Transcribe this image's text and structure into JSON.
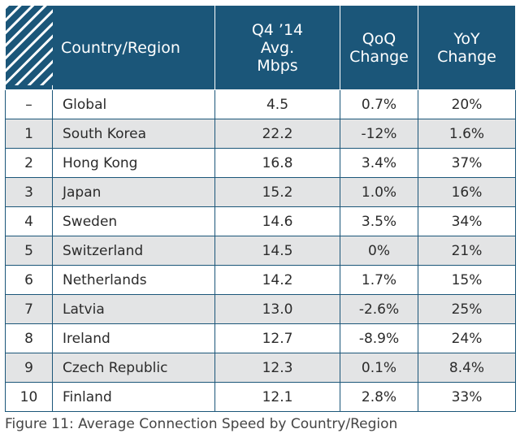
{
  "colors": {
    "header_bg": "#1b5679",
    "shaded_row_bg": "#e3e4e5",
    "border": "#1b5679"
  },
  "chart_data": {
    "type": "table",
    "columns": [
      "",
      "Country/Region",
      "Q4 ’14 Avg. Mbps",
      "QoQ Change",
      "YoY Change"
    ],
    "header_lines": {
      "country": "Country/Region",
      "speed": [
        "Q4 ’14",
        "Avg.",
        "Mbps"
      ],
      "qoq": [
        "QoQ",
        "Change"
      ],
      "yoy": [
        "YoY",
        "Change"
      ]
    },
    "rows": [
      {
        "rank": "–",
        "country": "Global",
        "speed": "4.5",
        "qoq": "0.7%",
        "yoy": "20%"
      },
      {
        "rank": "1",
        "country": "South Korea",
        "speed": "22.2",
        "qoq": "-12%",
        "yoy": "1.6%"
      },
      {
        "rank": "2",
        "country": "Hong Kong",
        "speed": "16.8",
        "qoq": "3.4%",
        "yoy": "37%"
      },
      {
        "rank": "3",
        "country": "Japan",
        "speed": "15.2",
        "qoq": "1.0%",
        "yoy": "16%"
      },
      {
        "rank": "4",
        "country": "Sweden",
        "speed": "14.6",
        "qoq": "3.5%",
        "yoy": "34%"
      },
      {
        "rank": "5",
        "country": "Switzerland",
        "speed": "14.5",
        "qoq": "0%",
        "yoy": "21%"
      },
      {
        "rank": "6",
        "country": "Netherlands",
        "speed": "14.2",
        "qoq": "1.7%",
        "yoy": "15%"
      },
      {
        "rank": "7",
        "country": "Latvia",
        "speed": "13.0",
        "qoq": "-2.6%",
        "yoy": "25%"
      },
      {
        "rank": "8",
        "country": "Ireland",
        "speed": "12.7",
        "qoq": "-8.9%",
        "yoy": "24%"
      },
      {
        "rank": "9",
        "country": "Czech Republic",
        "speed": "12.3",
        "qoq": "0.1%",
        "yoy": "8.4%"
      },
      {
        "rank": "10",
        "country": "Finland",
        "speed": "12.1",
        "qoq": "2.8%",
        "yoy": "33%"
      }
    ]
  },
  "caption": "Figure 11: Average Connection Speed by Country/Region"
}
